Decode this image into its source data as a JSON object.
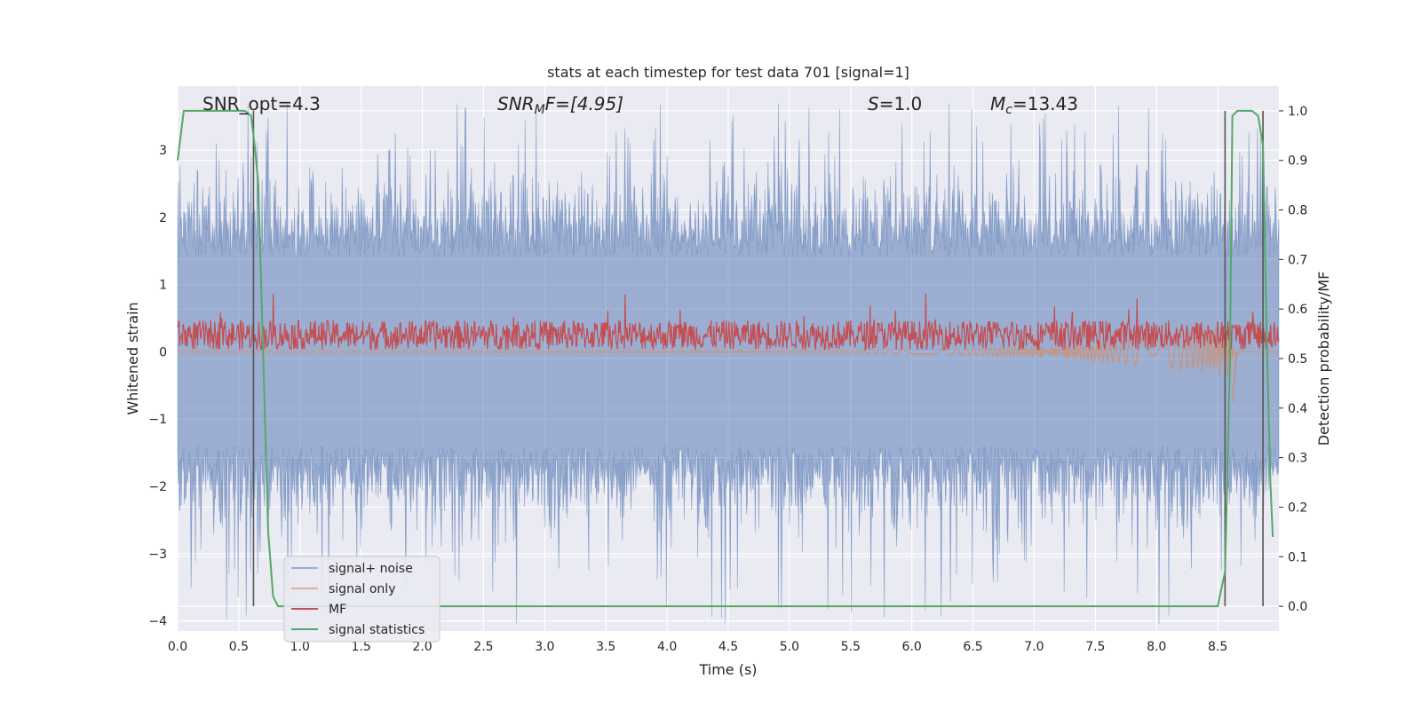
{
  "chart_data": {
    "type": "line",
    "title": "stats at each timestep for test data 701 [signal=1]",
    "xlabel": "Time (s)",
    "ylabel": "Whitened strain",
    "y2label": "Detection probability/MF",
    "xlim": [
      0.0,
      9.0
    ],
    "ylim": [
      -4.15,
      3.95
    ],
    "y2lim": [
      -0.05,
      1.05
    ],
    "xticks": [
      "0.0",
      "0.5",
      "1.0",
      "1.5",
      "2.0",
      "2.5",
      "3.0",
      "3.5",
      "4.0",
      "4.5",
      "5.0",
      "5.5",
      "6.0",
      "6.5",
      "7.0",
      "7.5",
      "8.0",
      "8.5"
    ],
    "yticks": [
      "3",
      "2",
      "1",
      "0",
      "−1",
      "−2",
      "−3",
      "−4"
    ],
    "y2ticks": [
      "1.0",
      "0.9",
      "0.8",
      "0.7",
      "0.6",
      "0.5",
      "0.4",
      "0.3",
      "0.2",
      "0.1",
      "0.0"
    ],
    "grid": true,
    "annotations": {
      "snr_opt": "SNR_opt=4.3",
      "snr_mf_main": "SNR",
      "snr_mf_sub": "M",
      "snr_mf_rest": "F=[4.95]",
      "s_main": "S",
      "s_rest": "=1.0",
      "mc_main": "M",
      "mc_sub": "c",
      "mc_rest": "=13.43"
    },
    "vlines_x": [
      0.62,
      8.56,
      8.87
    ],
    "legend": {
      "position": "lower-left",
      "entries": [
        "signal+ noise",
        "signal only",
        "MF",
        "signal statistics"
      ]
    },
    "series": [
      {
        "name": "signal statistics",
        "axis": "right",
        "color": "#55a868",
        "x": [
          0.0,
          0.05,
          0.1,
          0.2,
          0.3,
          0.4,
          0.5,
          0.55,
          0.6,
          0.63,
          0.66,
          0.7,
          0.74,
          0.78,
          0.82,
          1.0,
          2.0,
          3.0,
          4.0,
          5.0,
          6.0,
          6.6,
          6.8,
          7.0,
          8.0,
          8.5,
          8.56,
          8.6,
          8.62,
          8.66,
          8.72,
          8.78,
          8.83,
          8.87,
          8.9,
          8.93,
          8.95
        ],
        "y": [
          0.9,
          1.0,
          1.0,
          1.0,
          1.0,
          1.0,
          1.0,
          1.0,
          0.99,
          0.93,
          0.85,
          0.5,
          0.15,
          0.02,
          0.0,
          0.0,
          0.0,
          0.0,
          0.0,
          0.0,
          0.0,
          0.0,
          0.0,
          0.0,
          0.0,
          0.0,
          0.07,
          0.5,
          0.99,
          1.0,
          1.0,
          1.0,
          0.99,
          0.93,
          0.55,
          0.25,
          0.14
        ]
      },
      {
        "name": "MF",
        "axis": "left",
        "color": "#c44e52",
        "center": 0.25,
        "amplitude": 0.22
      },
      {
        "name": "signal only",
        "axis": "left",
        "color": "#dd8452"
      },
      {
        "name": "signal+ noise",
        "axis": "left",
        "color": "#4c72b0",
        "typical_range": [
          -2.4,
          2.4
        ],
        "extreme_range": [
          -4.1,
          3.7
        ]
      }
    ],
    "colors": {
      "background": "#eaeaf2",
      "grid": "#ffffff",
      "vline": "#555555"
    }
  }
}
